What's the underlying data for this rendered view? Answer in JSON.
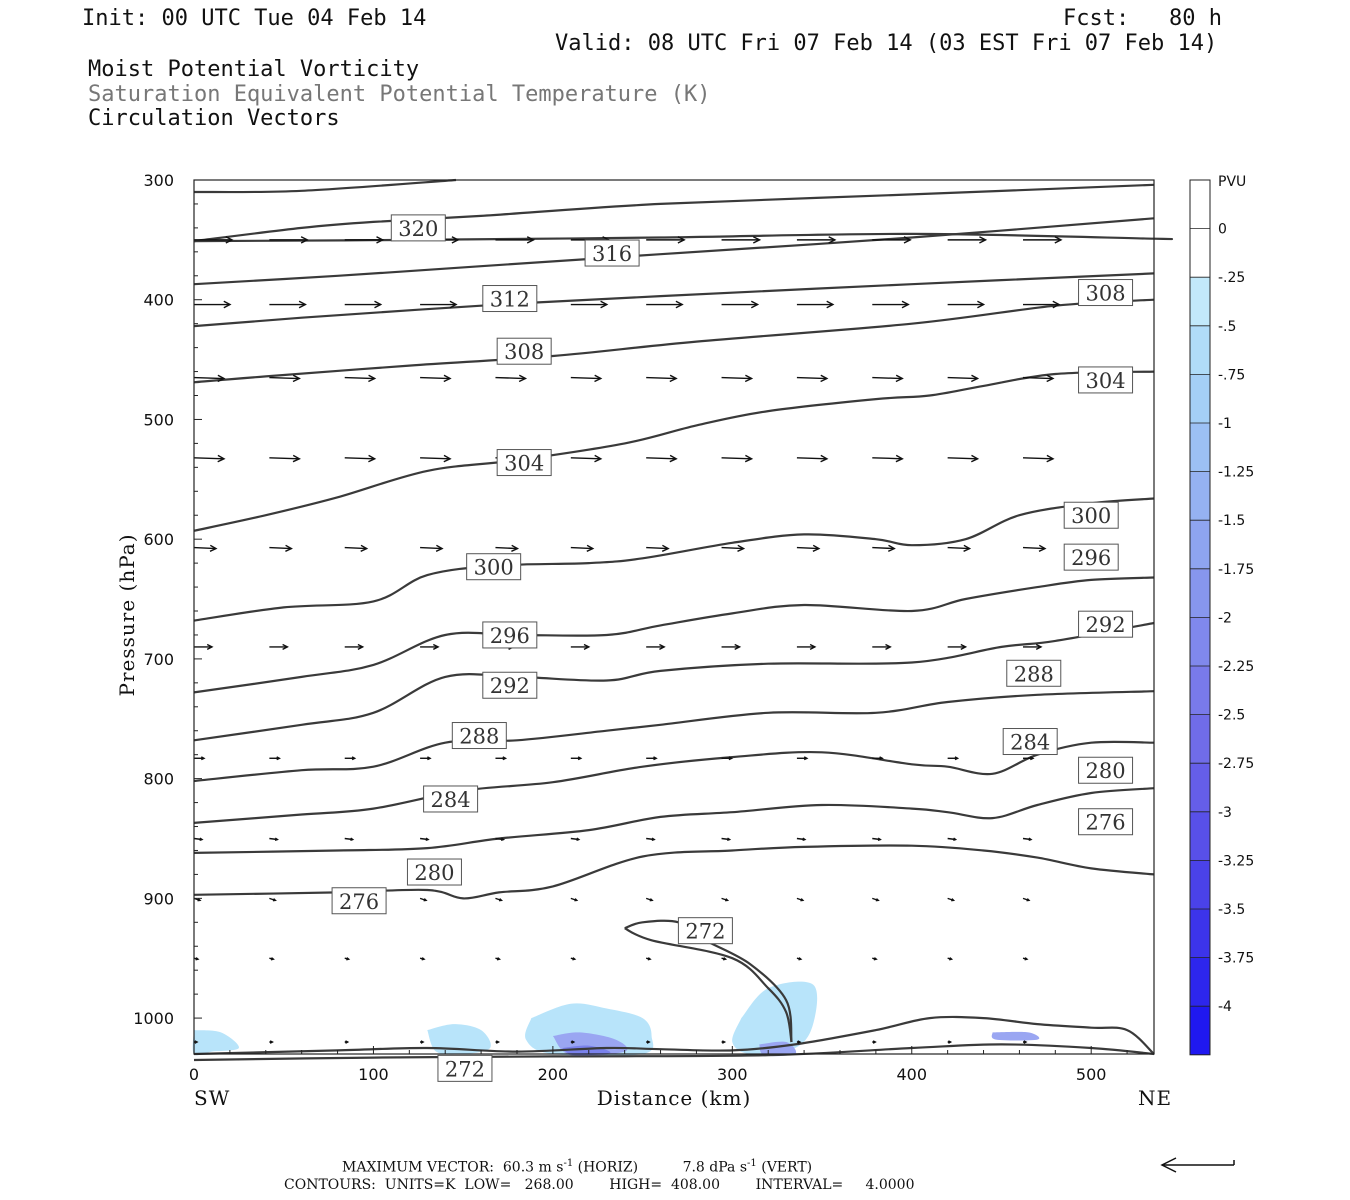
{
  "header": {
    "init": "Init: 00 UTC Tue 04 Feb 14",
    "fcst": "Fcst:   80 h",
    "valid": "Valid: 08 UTC Fri 07 Feb 14 (03 EST Fri 07 Feb 14)",
    "line1": "Moist Potential Vorticity",
    "line2": "Saturation Equivalent Potential Temperature (K)",
    "line3": "Circulation Vectors"
  },
  "footer": {
    "max_label": "MAXIMUM VECTOR:",
    "max_horiz_value": "60.3",
    "max_horiz_unit": "m s",
    "max_horiz_exp": "-1",
    "max_horiz_tag": "(HORIZ)",
    "max_vert_value": "7.8",
    "max_vert_unit": "dPa s",
    "max_vert_exp": "-1",
    "max_vert_tag": "(VERT)",
    "contours": "CONTOURS:  UNITS=K  LOW=   268.00        HIGH=  408.00        INTERVAL=     4.0000"
  },
  "chart_data": {
    "type": "contour",
    "xlabel": "Distance (km)",
    "ylabel": "Pressure (hPa)",
    "xlim": [
      0,
      535
    ],
    "ylim": [
      1030,
      300
    ],
    "x_ticks": [
      0,
      100,
      200,
      300,
      400,
      500
    ],
    "y_ticks": [
      300,
      400,
      500,
      600,
      700,
      800,
      900,
      1000
    ],
    "x_end_labels": {
      "left": "SW",
      "right": "NE"
    },
    "colorbar": {
      "unit": "PVU",
      "labels": [
        "0",
        "-.25",
        "-.5",
        "-.75",
        "-1",
        "-1.25",
        "-1.5",
        "-1.75",
        "-2",
        "-2.25",
        "-2.5",
        "-2.75",
        "-3",
        "-3.25",
        "-3.5",
        "-3.75",
        "-4"
      ],
      "colors": [
        "#ffffff",
        "#ffffff",
        "#c2e9fa",
        "#b0dcf8",
        "#a4cff6",
        "#9cc0f4",
        "#95b2f2",
        "#8ea4f0",
        "#8796ee",
        "#8088ec",
        "#797aea",
        "#706ce8",
        "#655ee8",
        "#5850e8",
        "#4a42e9",
        "#3c34ea",
        "#2d26ec",
        "#1f18f0"
      ]
    },
    "contours": [
      {
        "level": 320,
        "pts": [
          [
            0,
            310
          ],
          [
            60,
            309
          ],
          [
            146,
            300
          ]
        ]
      },
      {
        "level": 316,
        "pts": [
          [
            0,
            351
          ],
          [
            120,
            350
          ],
          [
            260,
            348
          ],
          [
            400,
            345
          ],
          [
            535,
            349
          ],
          [
            535,
            349
          ]
        ]
      },
      {
        "level": 320,
        "pts": [
          [
            0,
            351
          ],
          [
            60,
            340
          ],
          [
            100,
            335
          ],
          [
            160,
            330
          ],
          [
            260,
            320
          ],
          [
            400,
            312
          ],
          [
            535,
            304
          ]
        ]
      },
      {
        "level": 316,
        "pts": [
          [
            0,
            387
          ],
          [
            80,
            380
          ],
          [
            160,
            372
          ],
          [
            260,
            362
          ],
          [
            400,
            348
          ],
          [
            535,
            332
          ]
        ]
      },
      {
        "level": 312,
        "pts": [
          [
            0,
            422
          ],
          [
            60,
            415
          ],
          [
            160,
            405
          ],
          [
            260,
            397
          ],
          [
            400,
            387
          ],
          [
            535,
            378
          ]
        ]
      },
      {
        "level": 308,
        "pts": [
          [
            0,
            469
          ],
          [
            40,
            464
          ],
          [
            120,
            455
          ],
          [
            200,
            447
          ],
          [
            280,
            435
          ],
          [
            400,
            420
          ],
          [
            480,
            405
          ],
          [
            535,
            400
          ]
        ]
      },
      {
        "level": 304,
        "pts": [
          [
            0,
            593
          ],
          [
            40,
            580
          ],
          [
            80,
            565
          ],
          [
            130,
            543
          ],
          [
            180,
            534
          ],
          [
            240,
            520
          ],
          [
            280,
            505
          ],
          [
            320,
            493
          ],
          [
            380,
            483
          ],
          [
            410,
            480
          ],
          [
            440,
            472
          ],
          [
            480,
            462
          ],
          [
            535,
            460
          ]
        ]
      },
      {
        "level": 300,
        "pts": [
          [
            0,
            668
          ],
          [
            50,
            657
          ],
          [
            100,
            652
          ],
          [
            130,
            630
          ],
          [
            170,
            622
          ],
          [
            220,
            620
          ],
          [
            250,
            616
          ],
          [
            300,
            603
          ],
          [
            340,
            596
          ],
          [
            380,
            600
          ],
          [
            400,
            605
          ],
          [
            430,
            600
          ],
          [
            460,
            580
          ],
          [
            500,
            570
          ],
          [
            535,
            566
          ]
        ]
      },
      {
        "level": 296,
        "pts": [
          [
            0,
            728
          ],
          [
            60,
            715
          ],
          [
            100,
            705
          ],
          [
            140,
            680
          ],
          [
            180,
            680
          ],
          [
            230,
            680
          ],
          [
            260,
            672
          ],
          [
            300,
            662
          ],
          [
            340,
            655
          ],
          [
            400,
            660
          ],
          [
            430,
            650
          ],
          [
            470,
            640
          ],
          [
            500,
            634
          ],
          [
            535,
            632
          ]
        ]
      },
      {
        "level": 292,
        "pts": [
          [
            0,
            768
          ],
          [
            60,
            755
          ],
          [
            100,
            745
          ],
          [
            140,
            715
          ],
          [
            180,
            715
          ],
          [
            230,
            718
          ],
          [
            260,
            710
          ],
          [
            320,
            704
          ],
          [
            400,
            703
          ],
          [
            450,
            690
          ],
          [
            480,
            685
          ],
          [
            535,
            670
          ]
        ]
      },
      {
        "level": 288,
        "pts": [
          [
            0,
            802
          ],
          [
            60,
            793
          ],
          [
            100,
            790
          ],
          [
            140,
            770
          ],
          [
            180,
            768
          ],
          [
            230,
            760
          ],
          [
            260,
            755
          ],
          [
            320,
            745
          ],
          [
            380,
            745
          ],
          [
            420,
            736
          ],
          [
            470,
            730
          ],
          [
            535,
            727
          ]
        ]
      },
      {
        "level": 284,
        "pts": [
          [
            0,
            837
          ],
          [
            60,
            830
          ],
          [
            100,
            825
          ],
          [
            150,
            810
          ],
          [
            200,
            803
          ],
          [
            250,
            790
          ],
          [
            300,
            782
          ],
          [
            350,
            778
          ],
          [
            400,
            788
          ],
          [
            420,
            790
          ],
          [
            445,
            796
          ],
          [
            470,
            780
          ],
          [
            500,
            770
          ],
          [
            535,
            770
          ]
        ]
      },
      {
        "level": 280,
        "pts": [
          [
            0,
            862
          ],
          [
            80,
            860
          ],
          [
            130,
            858
          ],
          [
            170,
            850
          ],
          [
            220,
            843
          ],
          [
            260,
            832
          ],
          [
            300,
            828
          ],
          [
            350,
            822
          ],
          [
            400,
            825
          ],
          [
            420,
            828
          ],
          [
            445,
            833
          ],
          [
            470,
            822
          ],
          [
            500,
            812
          ],
          [
            535,
            808
          ]
        ]
      },
      {
        "level": 276,
        "pts": [
          [
            0,
            897
          ],
          [
            80,
            895
          ],
          [
            130,
            893
          ],
          [
            150,
            900
          ],
          [
            170,
            895
          ],
          [
            200,
            890
          ],
          [
            250,
            865
          ],
          [
            300,
            860
          ],
          [
            340,
            857
          ],
          [
            400,
            856
          ],
          [
            440,
            860
          ],
          [
            470,
            866
          ],
          [
            500,
            875
          ],
          [
            535,
            880
          ]
        ]
      },
      {
        "level": 272,
        "pts": [
          [
            240,
            925
          ],
          [
            250,
            920
          ],
          [
            270,
            920
          ],
          [
            285,
            935
          ],
          [
            310,
            955
          ],
          [
            330,
            985
          ],
          [
            333,
            1020
          ]
        ]
      },
      {
        "level": 272,
        "pts": [
          [
            240,
            925
          ],
          [
            255,
            935
          ],
          [
            300,
            950
          ],
          [
            320,
            975
          ],
          [
            330,
            995
          ],
          [
            333,
            1020
          ]
        ]
      },
      {
        "level": 272,
        "pts": [
          [
            0,
            1030
          ],
          [
            80,
            1027
          ],
          [
            130,
            1025
          ],
          [
            180,
            1028
          ],
          [
            230,
            1025
          ],
          [
            260,
            1026
          ],
          [
            300,
            1027
          ],
          [
            335,
            1022
          ],
          [
            380,
            1010
          ],
          [
            410,
            1000
          ],
          [
            440,
            1000
          ],
          [
            470,
            1005
          ],
          [
            500,
            1008
          ],
          [
            520,
            1010
          ],
          [
            535,
            1030
          ]
        ]
      },
      {
        "level": 272,
        "pts": [
          [
            0,
            1035
          ],
          [
            100,
            1033
          ],
          [
            200,
            1032
          ],
          [
            320,
            1031
          ],
          [
            400,
            1025
          ],
          [
            450,
            1022
          ],
          [
            500,
            1025
          ],
          [
            535,
            1030
          ]
        ]
      }
    ],
    "contour_labels": [
      {
        "value": "320",
        "x": 125,
        "p": 340
      },
      {
        "value": "316",
        "x": 233,
        "p": 361
      },
      {
        "value": "312",
        "x": 176,
        "p": 399
      },
      {
        "value": "308",
        "x": 184,
        "p": 443
      },
      {
        "value": "308",
        "x": 508,
        "p": 394
      },
      {
        "value": "304",
        "x": 184,
        "p": 536
      },
      {
        "value": "304",
        "x": 508,
        "p": 467
      },
      {
        "value": "300",
        "x": 167,
        "p": 623
      },
      {
        "value": "300",
        "x": 500,
        "p": 580
      },
      {
        "value": "296",
        "x": 176,
        "p": 680
      },
      {
        "value": "296",
        "x": 500,
        "p": 615
      },
      {
        "value": "292",
        "x": 176,
        "p": 722
      },
      {
        "value": "292",
        "x": 508,
        "p": 671
      },
      {
        "value": "288",
        "x": 159,
        "p": 764
      },
      {
        "value": "288",
        "x": 468,
        "p": 712
      },
      {
        "value": "284",
        "x": 143,
        "p": 817
      },
      {
        "value": "284",
        "x": 466,
        "p": 769
      },
      {
        "value": "280",
        "x": 134,
        "p": 878
      },
      {
        "value": "280",
        "x": 508,
        "p": 793
      },
      {
        "value": "276",
        "x": 92,
        "p": 902
      },
      {
        "value": "276",
        "x": 508,
        "p": 836
      },
      {
        "value": "272",
        "x": 285,
        "p": 927
      },
      {
        "value": "272",
        "x": 151,
        "p": 1042
      }
    ],
    "shading": [
      {
        "level": -0.5,
        "pts": [
          [
            0,
            1010
          ],
          [
            15,
            1012
          ],
          [
            25,
            1025
          ],
          [
            10,
            1028
          ],
          [
            0,
            1030
          ]
        ]
      },
      {
        "level": -0.5,
        "pts": [
          [
            130,
            1010
          ],
          [
            145,
            1005
          ],
          [
            160,
            1010
          ],
          [
            165,
            1025
          ],
          [
            150,
            1030
          ],
          [
            135,
            1028
          ]
        ]
      },
      {
        "level": -0.5,
        "pts": [
          [
            188,
            1000
          ],
          [
            210,
            988
          ],
          [
            230,
            992
          ],
          [
            250,
            1000
          ],
          [
            255,
            1015
          ],
          [
            250,
            1030
          ],
          [
            200,
            1030
          ],
          [
            185,
            1018
          ]
        ]
      },
      {
        "level": -0.5,
        "pts": [
          [
            305,
            1000
          ],
          [
            320,
            975
          ],
          [
            345,
            972
          ],
          [
            345,
            1005
          ],
          [
            335,
            1025
          ],
          [
            310,
            1030
          ],
          [
            300,
            1020
          ]
        ]
      },
      {
        "level": -1.0,
        "pts": [
          [
            200,
            1015
          ],
          [
            215,
            1012
          ],
          [
            235,
            1018
          ],
          [
            240,
            1028
          ],
          [
            210,
            1031
          ]
        ]
      },
      {
        "level": -1.0,
        "pts": [
          [
            315,
            1022
          ],
          [
            330,
            1020
          ],
          [
            335,
            1030
          ],
          [
            318,
            1031
          ]
        ]
      },
      {
        "level": -2.0,
        "pts": [
          [
            205,
            1025
          ],
          [
            220,
            1023
          ],
          [
            232,
            1029
          ],
          [
            212,
            1031
          ]
        ]
      },
      {
        "level": -1.0,
        "pts": [
          [
            445,
            1012
          ],
          [
            465,
            1012
          ],
          [
            470,
            1018
          ],
          [
            447,
            1018
          ]
        ]
      }
    ],
    "vectors": [
      {
        "p": 350,
        "x0": 0,
        "dx": 42,
        "n": 12,
        "len": 38,
        "dp": 0
      },
      {
        "p": 404,
        "x0": 0,
        "dx": 42,
        "n": 12,
        "len": 36,
        "dp": 0
      },
      {
        "p": 465,
        "x0": 0,
        "dx": 42,
        "n": 12,
        "len": 30,
        "dp": 1
      },
      {
        "p": 532,
        "x0": 0,
        "dx": 42,
        "n": 12,
        "len": 30,
        "dp": 1
      },
      {
        "p": 607,
        "x0": 0,
        "dx": 42,
        "n": 12,
        "len": 22,
        "dp": 1
      },
      {
        "p": 690,
        "x0": 0,
        "dx": 42,
        "n": 12,
        "len": 18,
        "dp": 0
      },
      {
        "p": 783,
        "x0": 0,
        "dx": 42,
        "n": 12,
        "len": 10,
        "dp": 0
      },
      {
        "p": 850,
        "x0": 0,
        "dx": 42,
        "n": 12,
        "len": 8,
        "dp": 1
      },
      {
        "p": 900,
        "x0": 0,
        "dx": 42,
        "n": 12,
        "len": 6,
        "dp": 2
      },
      {
        "p": 950,
        "x0": 0,
        "dx": 42,
        "n": 12,
        "len": 4,
        "dp": 1
      },
      {
        "p": 1020,
        "x0": 0,
        "dx": 42,
        "n": 12,
        "len": 3,
        "dp": 0
      }
    ]
  }
}
